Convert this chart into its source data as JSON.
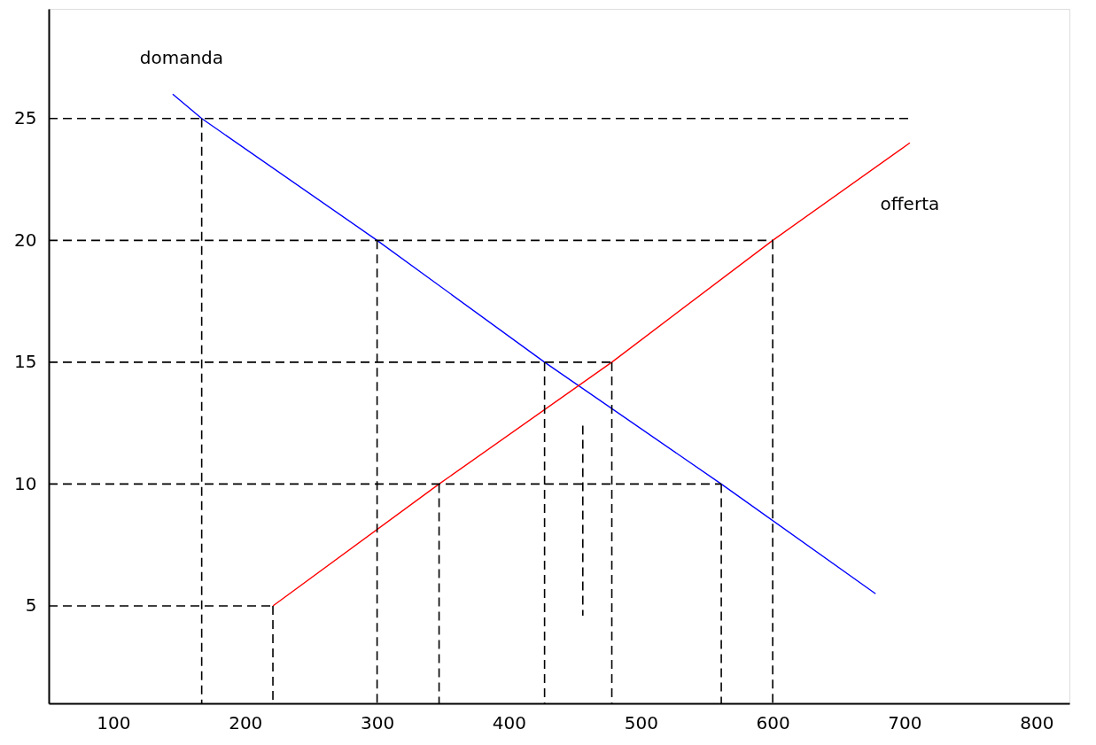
{
  "chart_data": {
    "type": "line",
    "xlim": [
      51,
      825
    ],
    "ylim": [
      1,
      29.5
    ],
    "xticks": [
      100,
      200,
      300,
      400,
      500,
      600,
      700,
      800
    ],
    "yticks": [
      5,
      10,
      15,
      20,
      25
    ],
    "grid": false,
    "marker": "none",
    "series": [
      {
        "name": "domanda",
        "color": "#0000ff",
        "line_style": "solid",
        "x": [
          145,
          167,
          300,
          427,
          561,
          678
        ],
        "values": [
          26,
          25,
          20,
          15,
          10,
          5.5
        ]
      },
      {
        "name": "offerta",
        "color": "#ff0000",
        "line_style": "solid",
        "x": [
          221,
          347,
          478,
          600,
          704
        ],
        "values": [
          5,
          10,
          15,
          20,
          24
        ]
      },
      {
        "color": "#000000",
        "line_style": "dashed",
        "x": [
          51,
          704
        ],
        "values": [
          25,
          25
        ]
      },
      {
        "color": "#000000",
        "line_style": "dashed",
        "x": [
          51,
          600
        ],
        "values": [
          20,
          20
        ]
      },
      {
        "color": "#000000",
        "line_style": "dashed",
        "x": [
          51,
          478
        ],
        "values": [
          15,
          15
        ]
      },
      {
        "color": "#000000",
        "line_style": "dashed",
        "x": [
          51,
          561
        ],
        "values": [
          10,
          10
        ]
      },
      {
        "color": "#000000",
        "line_style": "dashed",
        "x": [
          51,
          221
        ],
        "values": [
          5,
          5
        ]
      },
      {
        "color": "#000000",
        "line_style": "dashed",
        "x": [
          167,
          167
        ],
        "values": [
          25,
          1
        ]
      },
      {
        "color": "#000000",
        "line_style": "dashed",
        "x": [
          221,
          221
        ],
        "values": [
          5,
          1
        ]
      },
      {
        "color": "#000000",
        "line_style": "dashed",
        "x": [
          300,
          300
        ],
        "values": [
          20,
          1
        ]
      },
      {
        "color": "#000000",
        "line_style": "dashed",
        "x": [
          347,
          347
        ],
        "values": [
          10,
          1
        ]
      },
      {
        "color": "#000000",
        "line_style": "dashed",
        "x": [
          427,
          427
        ],
        "values": [
          15,
          1
        ]
      },
      {
        "color": "#000000",
        "line_style": "dashed",
        "x": [
          456,
          456
        ],
        "values": [
          12.4,
          4.6
        ]
      },
      {
        "color": "#000000",
        "line_style": "dashed",
        "x": [
          478,
          478
        ],
        "values": [
          15,
          1
        ]
      },
      {
        "color": "#000000",
        "line_style": "dashed",
        "x": [
          561,
          561
        ],
        "values": [
          10,
          1
        ]
      },
      {
        "color": "#000000",
        "line_style": "dashed",
        "x": [
          600,
          600
        ],
        "values": [
          20,
          1
        ]
      }
    ]
  }
}
